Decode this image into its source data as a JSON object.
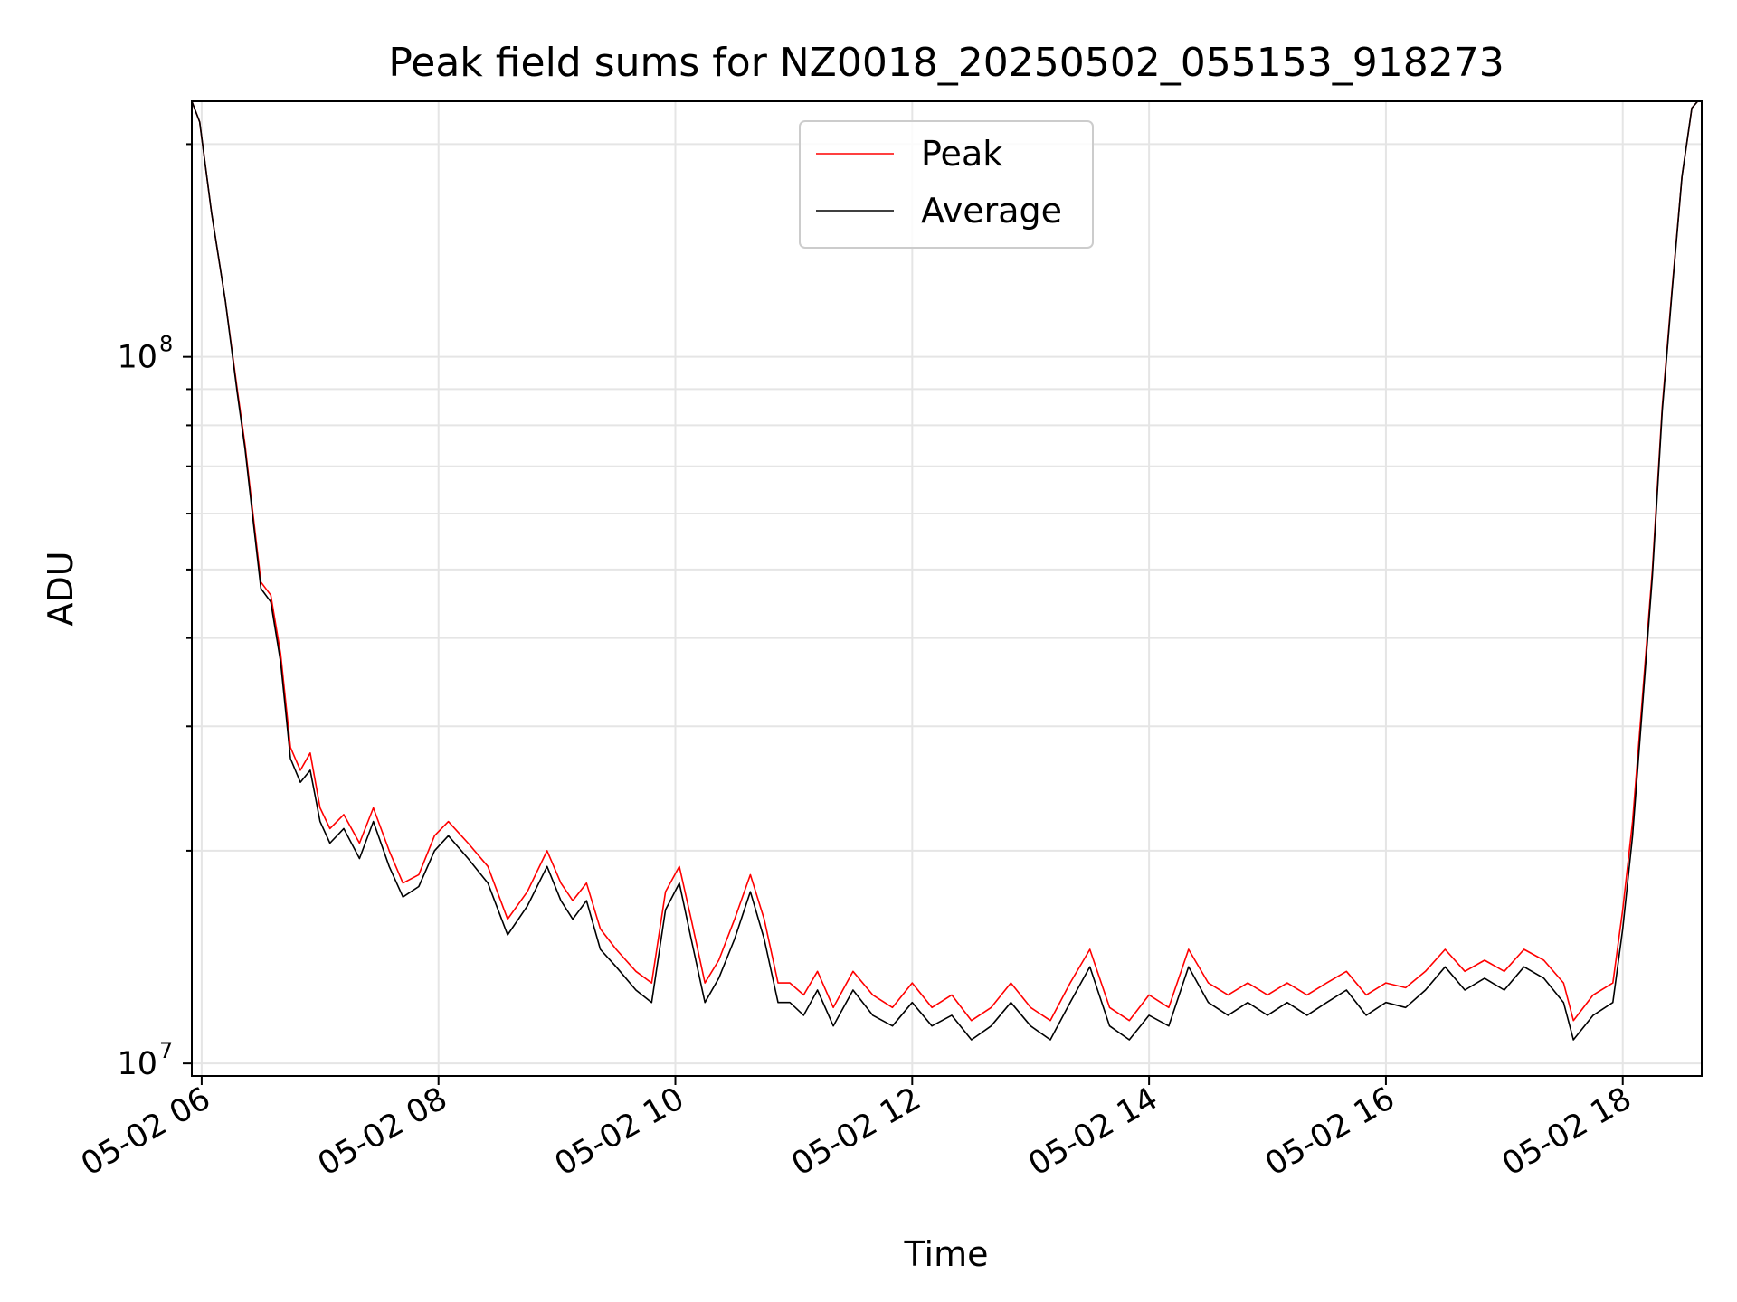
{
  "chart_data": {
    "type": "line",
    "title": "Peak field sums for NZ0018_20250502_055153_918273",
    "xlabel": "Time",
    "ylabel": "ADU",
    "y_scale": "log",
    "ylim": [
      9600000.0,
      230000000.0
    ],
    "xlim": [
      "2025-05-02 05:55",
      "2025-05-02 18:40"
    ],
    "grid": true,
    "legend_position": "upper center",
    "x_ticks": [
      {
        "t": "2025-05-02 06:00",
        "label": "05-02 06"
      },
      {
        "t": "2025-05-02 08:00",
        "label": "05-02 08"
      },
      {
        "t": "2025-05-02 10:00",
        "label": "05-02 10"
      },
      {
        "t": "2025-05-02 12:00",
        "label": "05-02 12"
      },
      {
        "t": "2025-05-02 14:00",
        "label": "05-02 14"
      },
      {
        "t": "2025-05-02 16:00",
        "label": "05-02 16"
      },
      {
        "t": "2025-05-02 18:00",
        "label": "05-02 18"
      }
    ],
    "y_ticks": [
      {
        "value": 10000000.0,
        "label": "10",
        "exp": "7"
      },
      {
        "value": 100000000.0,
        "label": "10",
        "exp": "8"
      }
    ],
    "series": [
      {
        "name": "Peak",
        "color": "#ff0000",
        "points": [
          [
            "2025-05-02 05:55",
            230000000.0
          ],
          [
            "2025-05-02 05:59",
            215000000.0
          ],
          [
            "2025-05-02 06:05",
            160000000.0
          ],
          [
            "2025-05-02 06:12",
            120000000.0
          ],
          [
            "2025-05-02 06:18",
            90000000.0
          ],
          [
            "2025-05-02 06:22",
            75000000.0
          ],
          [
            "2025-05-02 06:26",
            60000000.0
          ],
          [
            "2025-05-02 06:30",
            48000000.0
          ],
          [
            "2025-05-02 06:35",
            46000000.0
          ],
          [
            "2025-05-02 06:40",
            38000000.0
          ],
          [
            "2025-05-02 06:45",
            28000000.0
          ],
          [
            "2025-05-02 06:50",
            26000000.0
          ],
          [
            "2025-05-02 06:55",
            27500000.0
          ],
          [
            "2025-05-02 07:00",
            23000000.0
          ],
          [
            "2025-05-02 07:05",
            21500000.0
          ],
          [
            "2025-05-02 07:12",
            22500000.0
          ],
          [
            "2025-05-02 07:20",
            20500000.0
          ],
          [
            "2025-05-02 07:27",
            23000000.0
          ],
          [
            "2025-05-02 07:35",
            20000000.0
          ],
          [
            "2025-05-02 07:42",
            18000000.0
          ],
          [
            "2025-05-02 07:50",
            18500000.0
          ],
          [
            "2025-05-02 07:58",
            21000000.0
          ],
          [
            "2025-05-02 08:05",
            22000000.0
          ],
          [
            "2025-05-02 08:15",
            20500000.0
          ],
          [
            "2025-05-02 08:25",
            19000000.0
          ],
          [
            "2025-05-02 08:35",
            16000000.0
          ],
          [
            "2025-05-02 08:45",
            17500000.0
          ],
          [
            "2025-05-02 08:55",
            20000000.0
          ],
          [
            "2025-05-02 09:02",
            18000000.0
          ],
          [
            "2025-05-02 09:08",
            17000000.0
          ],
          [
            "2025-05-02 09:15",
            18000000.0
          ],
          [
            "2025-05-02 09:22",
            15500000.0
          ],
          [
            "2025-05-02 09:30",
            14500000.0
          ],
          [
            "2025-05-02 09:40",
            13500000.0
          ],
          [
            "2025-05-02 09:48",
            13000000.0
          ],
          [
            "2025-05-02 09:55",
            17500000.0
          ],
          [
            "2025-05-02 10:02",
            19000000.0
          ],
          [
            "2025-05-02 10:08",
            16000000.0
          ],
          [
            "2025-05-02 10:15",
            13000000.0
          ],
          [
            "2025-05-02 10:22",
            14000000.0
          ],
          [
            "2025-05-02 10:30",
            16000000.0
          ],
          [
            "2025-05-02 10:38",
            18500000.0
          ],
          [
            "2025-05-02 10:45",
            16000000.0
          ],
          [
            "2025-05-02 10:52",
            13000000.0
          ],
          [
            "2025-05-02 10:58",
            13000000.0
          ],
          [
            "2025-05-02 11:05",
            12500000.0
          ],
          [
            "2025-05-02 11:12",
            13500000.0
          ],
          [
            "2025-05-02 11:20",
            12000000.0
          ],
          [
            "2025-05-02 11:30",
            13500000.0
          ],
          [
            "2025-05-02 11:40",
            12500000.0
          ],
          [
            "2025-05-02 11:50",
            12000000.0
          ],
          [
            "2025-05-02 12:00",
            13000000.0
          ],
          [
            "2025-05-02 12:10",
            12000000.0
          ],
          [
            "2025-05-02 12:20",
            12500000.0
          ],
          [
            "2025-05-02 12:30",
            11500000.0
          ],
          [
            "2025-05-02 12:40",
            12000000.0
          ],
          [
            "2025-05-02 12:50",
            13000000.0
          ],
          [
            "2025-05-02 13:00",
            12000000.0
          ],
          [
            "2025-05-02 13:10",
            11500000.0
          ],
          [
            "2025-05-02 13:20",
            13000000.0
          ],
          [
            "2025-05-02 13:30",
            14500000.0
          ],
          [
            "2025-05-02 13:40",
            12000000.0
          ],
          [
            "2025-05-02 13:50",
            11500000.0
          ],
          [
            "2025-05-02 14:00",
            12500000.0
          ],
          [
            "2025-05-02 14:10",
            12000000.0
          ],
          [
            "2025-05-02 14:20",
            14500000.0
          ],
          [
            "2025-05-02 14:30",
            13000000.0
          ],
          [
            "2025-05-02 14:40",
            12500000.0
          ],
          [
            "2025-05-02 14:50",
            13000000.0
          ],
          [
            "2025-05-02 15:00",
            12500000.0
          ],
          [
            "2025-05-02 15:10",
            13000000.0
          ],
          [
            "2025-05-02 15:20",
            12500000.0
          ],
          [
            "2025-05-02 15:30",
            13000000.0
          ],
          [
            "2025-05-02 15:40",
            13500000.0
          ],
          [
            "2025-05-02 15:50",
            12500000.0
          ],
          [
            "2025-05-02 16:00",
            13000000.0
          ],
          [
            "2025-05-02 16:10",
            12800000.0
          ],
          [
            "2025-05-02 16:20",
            13500000.0
          ],
          [
            "2025-05-02 16:30",
            14500000.0
          ],
          [
            "2025-05-02 16:40",
            13500000.0
          ],
          [
            "2025-05-02 16:50",
            14000000.0
          ],
          [
            "2025-05-02 17:00",
            13500000.0
          ],
          [
            "2025-05-02 17:10",
            14500000.0
          ],
          [
            "2025-05-02 17:20",
            14000000.0
          ],
          [
            "2025-05-02 17:30",
            13000000.0
          ],
          [
            "2025-05-02 17:35",
            11500000.0
          ],
          [
            "2025-05-02 17:45",
            12500000.0
          ],
          [
            "2025-05-02 17:55",
            13000000.0
          ],
          [
            "2025-05-02 18:00",
            16500000.0
          ],
          [
            "2025-05-02 18:05",
            22000000.0
          ],
          [
            "2025-05-02 18:10",
            33000000.0
          ],
          [
            "2025-05-02 18:15",
            50000000.0
          ],
          [
            "2025-05-02 18:20",
            85000000.0
          ],
          [
            "2025-05-02 18:25",
            125000000.0
          ],
          [
            "2025-05-02 18:30",
            180000000.0
          ],
          [
            "2025-05-02 18:35",
            225000000.0
          ],
          [
            "2025-05-02 18:38",
            230000000.0
          ]
        ]
      },
      {
        "name": "Average",
        "color": "#000000",
        "points": [
          [
            "2025-05-02 05:55",
            230000000.0
          ],
          [
            "2025-05-02 05:59",
            215000000.0
          ],
          [
            "2025-05-02 06:05",
            160000000.0
          ],
          [
            "2025-05-02 06:12",
            120000000.0
          ],
          [
            "2025-05-02 06:18",
            89000000.0
          ],
          [
            "2025-05-02 06:22",
            74000000.0
          ],
          [
            "2025-05-02 06:26",
            59000000.0
          ],
          [
            "2025-05-02 06:30",
            47000000.0
          ],
          [
            "2025-05-02 06:35",
            45000000.0
          ],
          [
            "2025-05-02 06:40",
            37000000.0
          ],
          [
            "2025-05-02 06:45",
            27000000.0
          ],
          [
            "2025-05-02 06:50",
            25000000.0
          ],
          [
            "2025-05-02 06:55",
            26000000.0
          ],
          [
            "2025-05-02 07:00",
            22000000.0
          ],
          [
            "2025-05-02 07:05",
            20500000.0
          ],
          [
            "2025-05-02 07:12",
            21500000.0
          ],
          [
            "2025-05-02 07:20",
            19500000.0
          ],
          [
            "2025-05-02 07:27",
            22000000.0
          ],
          [
            "2025-05-02 07:35",
            19000000.0
          ],
          [
            "2025-05-02 07:42",
            17200000.0
          ],
          [
            "2025-05-02 07:50",
            17800000.0
          ],
          [
            "2025-05-02 07:58",
            20000000.0
          ],
          [
            "2025-05-02 08:05",
            21000000.0
          ],
          [
            "2025-05-02 08:15",
            19500000.0
          ],
          [
            "2025-05-02 08:25",
            18000000.0
          ],
          [
            "2025-05-02 08:35",
            15200000.0
          ],
          [
            "2025-05-02 08:45",
            16700000.0
          ],
          [
            "2025-05-02 08:55",
            19000000.0
          ],
          [
            "2025-05-02 09:02",
            17000000.0
          ],
          [
            "2025-05-02 09:08",
            16000000.0
          ],
          [
            "2025-05-02 09:15",
            17000000.0
          ],
          [
            "2025-05-02 09:22",
            14500000.0
          ],
          [
            "2025-05-02 09:30",
            13700000.0
          ],
          [
            "2025-05-02 09:40",
            12700000.0
          ],
          [
            "2025-05-02 09:48",
            12200000.0
          ],
          [
            "2025-05-02 09:55",
            16500000.0
          ],
          [
            "2025-05-02 10:02",
            18000000.0
          ],
          [
            "2025-05-02 10:08",
            15000000.0
          ],
          [
            "2025-05-02 10:15",
            12200000.0
          ],
          [
            "2025-05-02 10:22",
            13200000.0
          ],
          [
            "2025-05-02 10:30",
            15000000.0
          ],
          [
            "2025-05-02 10:38",
            17500000.0
          ],
          [
            "2025-05-02 10:45",
            15000000.0
          ],
          [
            "2025-05-02 10:52",
            12200000.0
          ],
          [
            "2025-05-02 10:58",
            12200000.0
          ],
          [
            "2025-05-02 11:05",
            11700000.0
          ],
          [
            "2025-05-02 11:12",
            12700000.0
          ],
          [
            "2025-05-02 11:20",
            11300000.0
          ],
          [
            "2025-05-02 11:30",
            12700000.0
          ],
          [
            "2025-05-02 11:40",
            11700000.0
          ],
          [
            "2025-05-02 11:50",
            11300000.0
          ],
          [
            "2025-05-02 12:00",
            12200000.0
          ],
          [
            "2025-05-02 12:10",
            11300000.0
          ],
          [
            "2025-05-02 12:20",
            11700000.0
          ],
          [
            "2025-05-02 12:30",
            10800000.0
          ],
          [
            "2025-05-02 12:40",
            11300000.0
          ],
          [
            "2025-05-02 12:50",
            12200000.0
          ],
          [
            "2025-05-02 13:00",
            11300000.0
          ],
          [
            "2025-05-02 13:10",
            10800000.0
          ],
          [
            "2025-05-02 13:20",
            12200000.0
          ],
          [
            "2025-05-02 13:30",
            13700000.0
          ],
          [
            "2025-05-02 13:40",
            11300000.0
          ],
          [
            "2025-05-02 13:50",
            10800000.0
          ],
          [
            "2025-05-02 14:00",
            11700000.0
          ],
          [
            "2025-05-02 14:10",
            11300000.0
          ],
          [
            "2025-05-02 14:20",
            13700000.0
          ],
          [
            "2025-05-02 14:30",
            12200000.0
          ],
          [
            "2025-05-02 14:40",
            11700000.0
          ],
          [
            "2025-05-02 14:50",
            12200000.0
          ],
          [
            "2025-05-02 15:00",
            11700000.0
          ],
          [
            "2025-05-02 15:10",
            12200000.0
          ],
          [
            "2025-05-02 15:20",
            11700000.0
          ],
          [
            "2025-05-02 15:30",
            12200000.0
          ],
          [
            "2025-05-02 15:40",
            12700000.0
          ],
          [
            "2025-05-02 15:50",
            11700000.0
          ],
          [
            "2025-05-02 16:00",
            12200000.0
          ],
          [
            "2025-05-02 16:10",
            12000000.0
          ],
          [
            "2025-05-02 16:20",
            12700000.0
          ],
          [
            "2025-05-02 16:30",
            13700000.0
          ],
          [
            "2025-05-02 16:40",
            12700000.0
          ],
          [
            "2025-05-02 16:50",
            13200000.0
          ],
          [
            "2025-05-02 17:00",
            12700000.0
          ],
          [
            "2025-05-02 17:10",
            13700000.0
          ],
          [
            "2025-05-02 17:20",
            13200000.0
          ],
          [
            "2025-05-02 17:30",
            12200000.0
          ],
          [
            "2025-05-02 17:35",
            10800000.0
          ],
          [
            "2025-05-02 17:45",
            11700000.0
          ],
          [
            "2025-05-02 17:55",
            12200000.0
          ],
          [
            "2025-05-02 18:00",
            15500000.0
          ],
          [
            "2025-05-02 18:05",
            21000000.0
          ],
          [
            "2025-05-02 18:10",
            32000000.0
          ],
          [
            "2025-05-02 18:15",
            49000000.0
          ],
          [
            "2025-05-02 18:20",
            84000000.0
          ],
          [
            "2025-05-02 18:25",
            124000000.0
          ],
          [
            "2025-05-02 18:30",
            180000000.0
          ],
          [
            "2025-05-02 18:35",
            225000000.0
          ],
          [
            "2025-05-02 18:38",
            230000000.0
          ]
        ]
      }
    ]
  }
}
